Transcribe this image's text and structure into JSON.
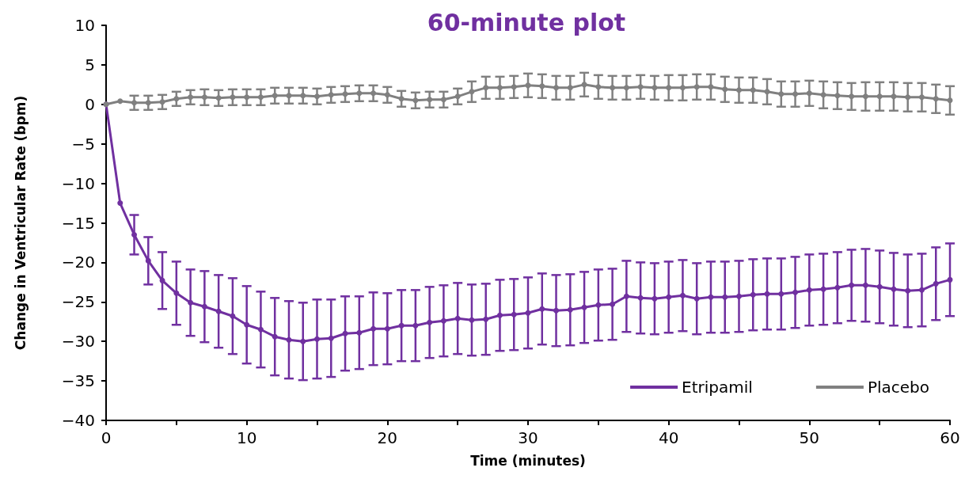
{
  "chart_data": {
    "type": "line",
    "title": "60-minute plot",
    "xlabel": "Time (minutes)",
    "ylabel": "Change in Ventricular Rate (bpm)",
    "x": [
      0,
      1,
      2,
      3,
      4,
      5,
      6,
      7,
      8,
      9,
      10,
      11,
      12,
      13,
      14,
      15,
      16,
      17,
      18,
      19,
      20,
      21,
      22,
      23,
      24,
      25,
      26,
      27,
      28,
      29,
      30,
      31,
      32,
      33,
      34,
      35,
      36,
      37,
      38,
      39,
      40,
      41,
      42,
      43,
      44,
      45,
      46,
      47,
      48,
      49,
      50,
      51,
      52,
      53,
      54,
      55,
      56,
      57,
      58,
      59,
      60
    ],
    "series": [
      {
        "name": "Etripamil",
        "color": "#7030a0",
        "values": [
          0,
          -12.5,
          -16.5,
          -19.8,
          -22.3,
          -23.9,
          -25.1,
          -25.6,
          -26.2,
          -26.8,
          -27.9,
          -28.5,
          -29.4,
          -29.8,
          -30.0,
          -29.7,
          -29.6,
          -29.0,
          -28.9,
          -28.4,
          -28.4,
          -28.0,
          -28.0,
          -27.6,
          -27.4,
          -27.1,
          -27.3,
          -27.2,
          -26.7,
          -26.6,
          -26.4,
          -25.9,
          -26.1,
          -26.0,
          -25.7,
          -25.4,
          -25.3,
          -24.3,
          -24.5,
          -24.6,
          -24.4,
          -24.2,
          -24.6,
          -24.4,
          -24.4,
          -24.3,
          -24.1,
          -24.0,
          -24.0,
          -23.8,
          -23.5,
          -23.4,
          -23.2,
          -22.9,
          -22.9,
          -23.1,
          -23.4,
          -23.6,
          -23.5,
          -22.7,
          -22.2
        ],
        "errors": [
          null,
          null,
          2.5,
          3.0,
          3.6,
          4.0,
          4.2,
          4.5,
          4.6,
          4.8,
          4.9,
          4.8,
          4.9,
          4.9,
          4.9,
          5.0,
          4.9,
          4.7,
          4.6,
          4.6,
          4.5,
          4.5,
          4.5,
          4.5,
          4.5,
          4.5,
          4.5,
          4.5,
          4.5,
          4.5,
          4.5,
          4.5,
          4.5,
          4.5,
          4.5,
          4.5,
          4.5,
          4.5,
          4.5,
          4.5,
          4.5,
          4.5,
          4.5,
          4.5,
          4.5,
          4.5,
          4.5,
          4.5,
          4.5,
          4.5,
          4.5,
          4.5,
          4.5,
          4.5,
          4.6,
          4.6,
          4.6,
          4.6,
          4.6,
          4.6,
          4.6
        ]
      },
      {
        "name": "Placebo",
        "color": "#808080",
        "values": [
          0,
          0.4,
          0.2,
          0.2,
          0.3,
          0.7,
          0.9,
          0.9,
          0.8,
          0.9,
          0.9,
          0.9,
          1.1,
          1.1,
          1.1,
          1.0,
          1.2,
          1.3,
          1.4,
          1.4,
          1.2,
          0.7,
          0.5,
          0.6,
          0.6,
          1.0,
          1.6,
          2.1,
          2.1,
          2.2,
          2.4,
          2.3,
          2.1,
          2.1,
          2.5,
          2.2,
          2.1,
          2.1,
          2.2,
          2.1,
          2.1,
          2.1,
          2.2,
          2.2,
          1.9,
          1.8,
          1.8,
          1.6,
          1.3,
          1.3,
          1.4,
          1.2,
          1.1,
          1.0,
          1.0,
          1.0,
          1.0,
          0.9,
          0.9,
          0.7,
          0.5
        ],
        "errors": [
          null,
          null,
          0.9,
          0.9,
          0.9,
          0.9,
          0.9,
          1.0,
          1.0,
          1.0,
          1.0,
          1.0,
          1.0,
          1.0,
          1.0,
          1.0,
          1.0,
          1.0,
          1.0,
          1.0,
          1.0,
          1.0,
          1.0,
          1.0,
          1.0,
          1.0,
          1.3,
          1.4,
          1.4,
          1.4,
          1.5,
          1.5,
          1.5,
          1.5,
          1.5,
          1.5,
          1.5,
          1.5,
          1.5,
          1.5,
          1.6,
          1.6,
          1.6,
          1.6,
          1.6,
          1.6,
          1.6,
          1.6,
          1.6,
          1.6,
          1.6,
          1.7,
          1.7,
          1.7,
          1.8,
          1.8,
          1.8,
          1.8,
          1.8,
          1.8,
          1.8
        ]
      }
    ],
    "xlim": [
      0,
      60
    ],
    "xticks": [
      0,
      {
        "value": 5,
        "label": null
      },
      10,
      {
        "value": 15,
        "label": null
      },
      20,
      {
        "value": 25,
        "label": null
      },
      30,
      {
        "value": 35,
        "label": null
      },
      40,
      {
        "value": 45,
        "label": null
      },
      50,
      {
        "value": 55,
        "label": null
      },
      60
    ],
    "ylim": [
      -40,
      10
    ],
    "yticks": [
      -40,
      -35,
      -30,
      -25,
      -20,
      -15,
      -10,
      -5,
      0,
      5,
      10
    ],
    "grid": false,
    "legend": "bottom right",
    "marker": "circle",
    "line_style": "solid"
  }
}
